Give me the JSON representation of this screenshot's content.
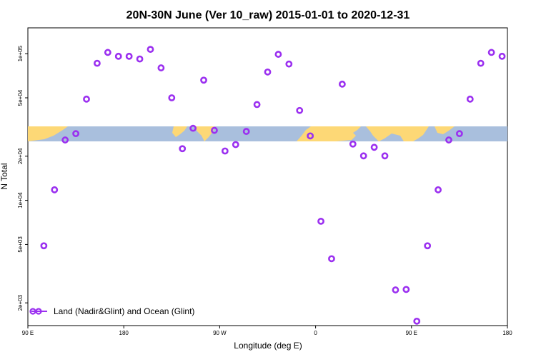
{
  "chart_data": {
    "type": "scatter",
    "title": "20N-30N June (Ver 10_raw)   2015-01-01 to 2020-12-31",
    "xlabel": "Longitude (deg E)",
    "ylabel": "N Total",
    "xlim": [
      90,
      540
    ],
    "ylim_log": [
      1400,
      150000
    ],
    "x_ticks": [
      {
        "value": 90,
        "label": "90 E"
      },
      {
        "value": 180,
        "label": "180"
      },
      {
        "value": 270,
        "label": "90 W"
      },
      {
        "value": 360,
        "label": "0"
      },
      {
        "value": 450,
        "label": "90 E"
      },
      {
        "value": 540,
        "label": "180"
      }
    ],
    "y_ticks": [
      {
        "value": 2000,
        "label": "2e+03"
      },
      {
        "value": 5000,
        "label": "5e+03"
      },
      {
        "value": 10000,
        "label": "1e+04"
      },
      {
        "value": 20000,
        "label": "2e+04"
      },
      {
        "value": 50000,
        "label": "5e+04"
      },
      {
        "value": 100000,
        "label": "1e+05"
      }
    ],
    "colors": {
      "points": "#9b30f0",
      "land": "#fdd876",
      "ocean": "#a9bfdd"
    },
    "series": [
      {
        "name": "Land (Nadir&Glint) and Ocean (Glint)",
        "x": [
          105,
          115,
          125,
          135,
          145,
          155,
          165,
          175,
          185,
          195,
          205,
          215,
          225,
          235,
          245,
          255,
          265,
          275,
          285,
          295,
          305,
          315,
          325,
          335,
          345,
          355,
          365,
          375,
          385,
          395,
          405,
          415,
          425,
          435,
          445,
          455,
          465,
          475,
          485,
          495,
          505,
          515,
          525,
          535
        ],
        "y": [
          4900,
          11800,
          25800,
          28500,
          49000,
          86000,
          102000,
          96000,
          96000,
          92000,
          107000,
          80000,
          50000,
          22500,
          31000,
          66000,
          30000,
          21700,
          24000,
          29500,
          45000,
          75000,
          99000,
          85000,
          41000,
          27500,
          7200,
          4000,
          62000,
          24200,
          20100,
          23000,
          20100,
          2450,
          2470,
          1500,
          4900,
          11800,
          25800,
          28500,
          49000,
          86000,
          102000,
          96000
        ]
      }
    ]
  }
}
